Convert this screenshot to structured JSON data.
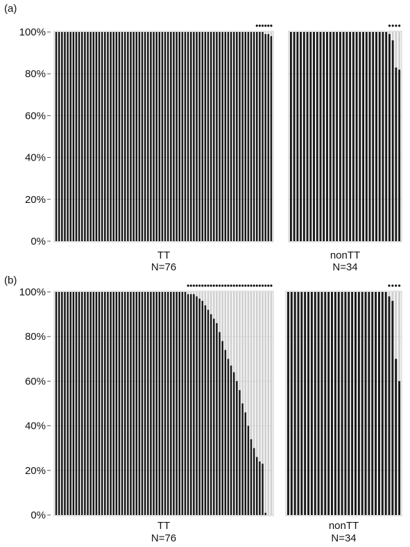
{
  "chart_data": [
    {
      "panel_label": "(a)",
      "type": "bar",
      "stacked": true,
      "ylim": [
        0,
        100
      ],
      "yticks": [
        "0%",
        "20%",
        "40%",
        "60%",
        "80%",
        "100%"
      ],
      "grid": true,
      "groups": [
        {
          "label": "TT",
          "n_label": "N=76",
          "marked_count": 6,
          "values": [
            100,
            100,
            100,
            100,
            100,
            100,
            100,
            100,
            100,
            100,
            100,
            100,
            100,
            100,
            100,
            100,
            100,
            100,
            100,
            100,
            100,
            100,
            100,
            100,
            100,
            100,
            100,
            100,
            100,
            100,
            100,
            100,
            100,
            100,
            100,
            100,
            100,
            100,
            100,
            100,
            100,
            100,
            100,
            100,
            100,
            100,
            100,
            100,
            100,
            100,
            100,
            100,
            100,
            100,
            100,
            100,
            100,
            100,
            100,
            100,
            100,
            100,
            100,
            100,
            100,
            100,
            100,
            100,
            100,
            100,
            100,
            100,
            100,
            99,
            99,
            98
          ]
        },
        {
          "label": "nonTT",
          "n_label": "N=34",
          "marked_count": 4,
          "values": [
            100,
            100,
            100,
            100,
            100,
            100,
            100,
            100,
            100,
            100,
            100,
            100,
            100,
            100,
            100,
            100,
            100,
            100,
            100,
            100,
            100,
            100,
            100,
            100,
            100,
            100,
            100,
            100,
            100,
            100,
            99,
            96,
            83,
            82
          ]
        }
      ]
    },
    {
      "panel_label": "(b)",
      "type": "bar",
      "stacked": true,
      "ylim": [
        0,
        100
      ],
      "yticks": [
        "0%",
        "20%",
        "40%",
        "60%",
        "80%",
        "100%"
      ],
      "grid": true,
      "groups": [
        {
          "label": "TT",
          "n_label": "N=76",
          "marked_count": 30,
          "values": [
            100,
            100,
            100,
            100,
            100,
            100,
            100,
            100,
            100,
            100,
            100,
            100,
            100,
            100,
            100,
            100,
            100,
            100,
            100,
            100,
            100,
            100,
            100,
            100,
            100,
            100,
            100,
            100,
            100,
            100,
            100,
            100,
            100,
            100,
            100,
            100,
            100,
            100,
            100,
            100,
            100,
            100,
            100,
            100,
            100,
            100,
            99,
            99,
            99,
            98,
            97,
            96,
            94,
            92,
            90,
            88,
            86,
            82,
            78,
            74,
            70,
            67,
            64,
            60,
            56,
            50,
            46,
            40,
            34,
            30,
            26,
            24,
            23,
            1,
            0,
            0
          ]
        },
        {
          "label": "nonTT",
          "n_label": "N=34",
          "marked_count": 4,
          "values": [
            100,
            100,
            100,
            100,
            100,
            100,
            100,
            100,
            100,
            100,
            100,
            100,
            100,
            100,
            100,
            100,
            100,
            100,
            100,
            100,
            100,
            100,
            100,
            100,
            100,
            100,
            100,
            100,
            100,
            100,
            98,
            96,
            70,
            60
          ]
        }
      ]
    }
  ]
}
